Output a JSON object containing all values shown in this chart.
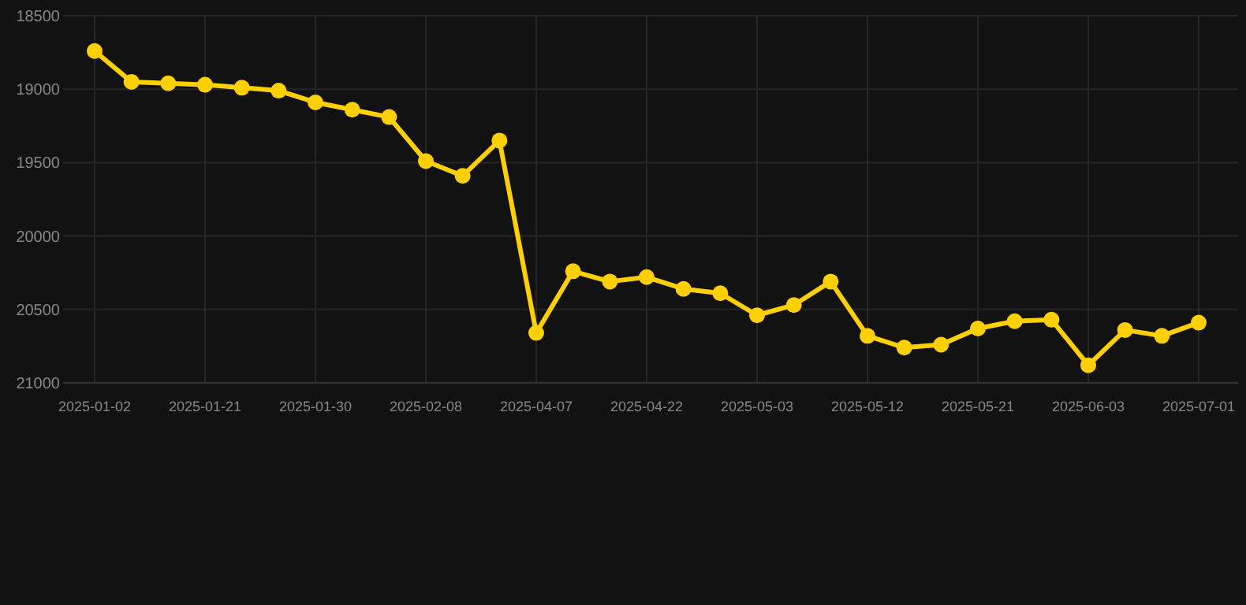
{
  "chart_data": {
    "type": "line",
    "categories": [
      "2025-01-02",
      null,
      null,
      "2025-01-21",
      null,
      null,
      "2025-01-30",
      null,
      null,
      "2025-02-08",
      null,
      null,
      "2025-04-07",
      null,
      null,
      "2025-04-22",
      null,
      null,
      "2025-05-03",
      null,
      null,
      "2025-05-12",
      null,
      null,
      "2025-05-21",
      null,
      null,
      "2025-06-03",
      null,
      null,
      "2025-07-01"
    ],
    "series": [
      {
        "color": "#ffd000",
        "values": [
          18740,
          18950,
          18960,
          18970,
          18990,
          19010,
          19090,
          19140,
          19190,
          19490,
          19590,
          19350,
          20660,
          20240,
          20310,
          20280,
          20360,
          20390,
          20540,
          20470,
          20310,
          20680,
          20760,
          20740,
          20630,
          20580,
          20570,
          20880,
          20640,
          20680,
          20590
        ]
      }
    ],
    "ylim": [
      21000,
      18500
    ],
    "yticks": [
      18500,
      19000,
      19500,
      20000,
      20500,
      21000
    ],
    "grid": true,
    "marker": "circle",
    "line_style": "solid"
  }
}
